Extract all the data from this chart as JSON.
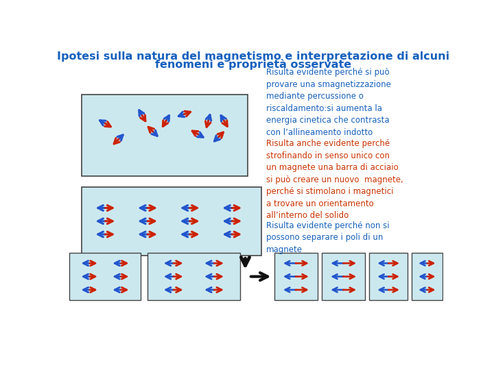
{
  "title_line1": "Ipotesi sulla natura del magnetismo e interpretazione di alcuni",
  "title_line2": "fenomeni e proprietà osservate",
  "title_color": "#1560bd",
  "title_fontsize": 11.5,
  "bg_color": "#ffffff",
  "box_bg": "#cce8ef",
  "box_border": "#444444",
  "text_blue": "#1560bd",
  "text_red": "#cc3300",
  "text_para1": "Risulta evidente perché si può\nprovare una smagnetizzazione\nmediante percussione o\nriscaldamento:si aumenta la\nenergia cinetica che contrasta\ncon l’allineamento indotto",
  "text_para2": "Risulta anche evidente perché\nstrofinando in senso unico con\nun magnete una barra di acciaio\nsi può creare un nuovo  magnete,\nperché si stimolano i magnetici\na trovare un orientamento\nall’interno del solido",
  "text_para3": "Risulta evidente perché non si\npossono separare i poli di un\nmagnete",
  "arrow_blue": "#2255cc",
  "arrow_red": "#cc2200",
  "arrow_dark": "#111111"
}
